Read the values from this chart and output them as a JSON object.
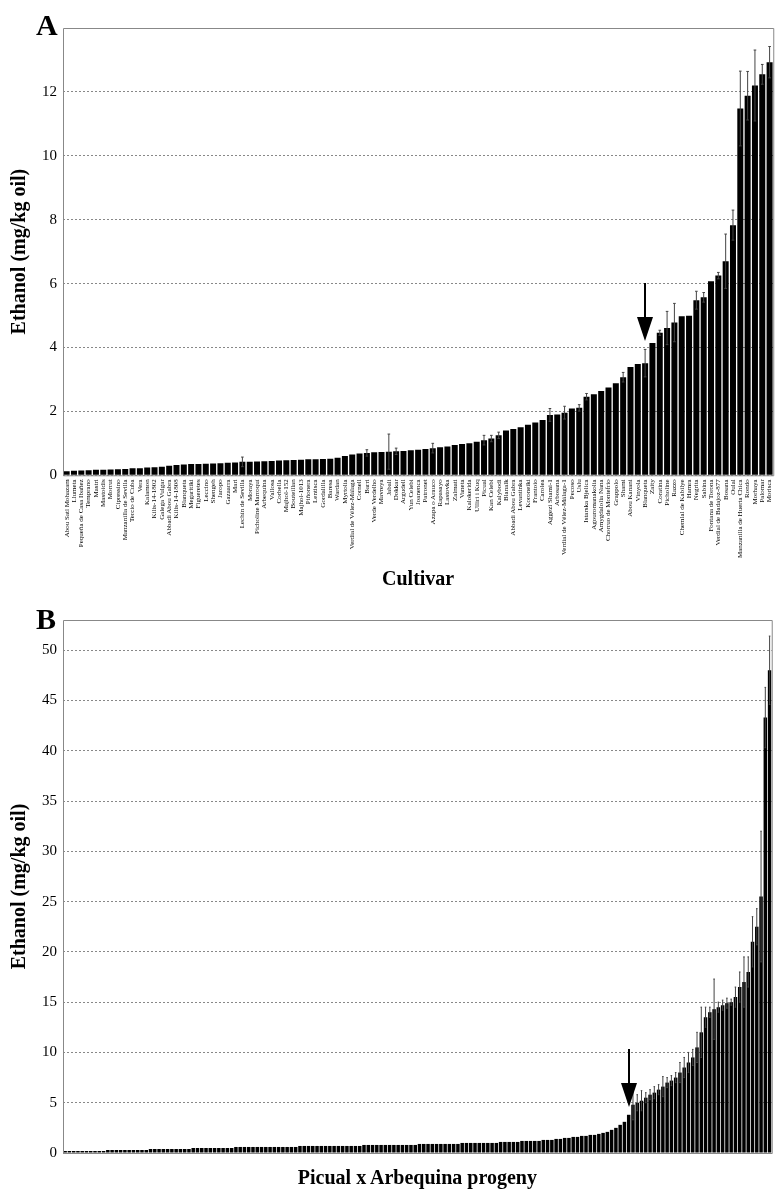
{
  "chart_data": [
    {
      "type": "bar",
      "title": "A",
      "xlabel": "Cultivar",
      "ylabel": "Ethanol (mg/kg oil)",
      "color": "#000000",
      "grid": "y",
      "ylim": [
        0,
        14
      ],
      "yticks": [
        0,
        2,
        4,
        6,
        8,
        10,
        12
      ],
      "categories": [
        "Abou Satl Mohazam",
        "Llumeta",
        "Pequeña de Casa Ibañez",
        "Temprano",
        "Mastri",
        "Mastoidis",
        "Morrut",
        "Cipressino",
        "Manzanilla de Sevilla",
        "Tercio de Cuba",
        "Vera",
        "Kalamon",
        "Kilis-14-1802",
        "Galega Vulgar",
        "Abbadi Abou Gabra",
        "Kilis-14-1808",
        "Blanqueta",
        "Megaritiki",
        "Figueretes",
        "Leccino",
        "Shengeh",
        "Jaropo",
        "Gazaarra",
        "Mari",
        "Lechín de Sevilla",
        "Moraya",
        "Picholine Marroquí",
        "Arbequina",
        "Vallosa",
        "Corbella",
        "Majhol-152",
        "Bouteillan",
        "Majhol-1013",
        "Piñonera",
        "Lentisca",
        "Gordalilla",
        "Baresa",
        "Wardan",
        "Myrtolia",
        "Verdial de Vélez-Málaga",
        "Cornell",
        "Barri",
        "Verde Verdelho",
        "Mavreya",
        "Jabali",
        "Dokkar",
        "Argudell",
        "Yun Celebi",
        "Joanenca",
        "Patronet",
        "Azapa o Arauco",
        "Rapasayo",
        "Lastovka",
        "Zalmati",
        "Vaneta",
        "Kalokerida",
        "Ulliri i Kuq",
        "Picual",
        "Kan Celebi",
        "Kalybodi",
        "Blanalk",
        "Abbadi Abou Gabra",
        "Levantinka",
        "Koroneiki",
        "Frantoio",
        "Carolea",
        "Aggezi Shami-1",
        "Arbosana",
        "Verdial de Vélez-Málaga-1",
        "Pecoso",
        "Uslu",
        "Istarska Bjelica",
        "Agouromanakolia",
        "Amygdalolia Nana",
        "Chorruo de Montefrío",
        "Grappolo",
        "Shami",
        "Abou Kanani",
        "Vinyola",
        "Blanqueta",
        "Zaity",
        "Coratina",
        "Picholine",
        "Razzo",
        "Chemlal de Kabilye",
        "Hamra",
        "Negrita",
        "Sabina",
        "Fontana de Torona",
        "Verdial de Badajoz-877",
        "Bosana",
        "Oulal",
        "Manzanilla de Huerta Chica",
        "Rondo",
        "Morhaya",
        "Palomar",
        "Morisca"
      ],
      "values": [
        0.13,
        0.14,
        0.15,
        0.16,
        0.17,
        0.17,
        0.18,
        0.19,
        0.2,
        0.22,
        0.22,
        0.24,
        0.25,
        0.27,
        0.3,
        0.32,
        0.34,
        0.35,
        0.35,
        0.36,
        0.37,
        0.38,
        0.39,
        0.4,
        0.42,
        0.42,
        0.43,
        0.44,
        0.45,
        0.46,
        0.47,
        0.48,
        0.49,
        0.5,
        0.5,
        0.51,
        0.52,
        0.55,
        0.6,
        0.65,
        0.68,
        0.7,
        0.72,
        0.73,
        0.74,
        0.75,
        0.76,
        0.78,
        0.8,
        0.82,
        0.85,
        0.88,
        0.9,
        0.95,
        0.98,
        1.0,
        1.05,
        1.1,
        1.15,
        1.25,
        1.4,
        1.45,
        1.5,
        1.58,
        1.65,
        1.73,
        1.89,
        1.9,
        1.96,
        2.09,
        2.11,
        2.46,
        2.54,
        2.64,
        2.75,
        2.88,
        3.07,
        3.39,
        3.48,
        3.51,
        4.14,
        4.46,
        4.61,
        4.78,
        4.98,
        4.99,
        5.48,
        5.57,
        6.07,
        6.25,
        6.7,
        7.83,
        11.48,
        11.88,
        12.2,
        12.55,
        12.93
      ],
      "errors": [
        null,
        null,
        null,
        null,
        null,
        null,
        null,
        null,
        null,
        null,
        null,
        null,
        null,
        null,
        null,
        null,
        null,
        null,
        null,
        null,
        null,
        null,
        null,
        null,
        0.15,
        null,
        null,
        null,
        null,
        null,
        null,
        null,
        null,
        null,
        null,
        null,
        null,
        null,
        null,
        null,
        null,
        0.1,
        null,
        null,
        0.55,
        0.1,
        null,
        null,
        null,
        null,
        0.15,
        null,
        null,
        null,
        null,
        null,
        null,
        0.15,
        0.1,
        0.1,
        null,
        null,
        null,
        null,
        null,
        null,
        0.2,
        null,
        0.2,
        null,
        0.1,
        0.1,
        null,
        null,
        null,
        null,
        0.15,
        null,
        null,
        0.43,
        null,
        0.08,
        0.52,
        0.6,
        null,
        null,
        0.28,
        0.15,
        null,
        0.1,
        0.85,
        0.47,
        1.17,
        0.76,
        1.11,
        0.31,
        0.49
      ]
    },
    {
      "type": "bar",
      "title": "B",
      "xlabel": "Picual x Arbequina progeny",
      "ylabel": "Ethanol (mg/kg oil)",
      "color": "#000000",
      "grid": "y",
      "ylim": [
        0,
        53
      ],
      "yticks": [
        0,
        5,
        10,
        15,
        20,
        25,
        30,
        35,
        40,
        45,
        50
      ],
      "categories": [
        null,
        null,
        null,
        null,
        null,
        null,
        null,
        null,
        null,
        null,
        null,
        null,
        null,
        null,
        null,
        null,
        null,
        null,
        null,
        null,
        null,
        null,
        null,
        null,
        null,
        null,
        null,
        null,
        null,
        null,
        null,
        null,
        null,
        null,
        null,
        null,
        null,
        null,
        null,
        null,
        null,
        null,
        null,
        null,
        null,
        null,
        null,
        null,
        null,
        null,
        null,
        null,
        null,
        null,
        null,
        null,
        null,
        null,
        null,
        null,
        null,
        null,
        null,
        null,
        null,
        null,
        null,
        null,
        null,
        null,
        null,
        null,
        null,
        null,
        null,
        null,
        null,
        null,
        null,
        null,
        null,
        null,
        null,
        null,
        null,
        null,
        null,
        null,
        null,
        null,
        null,
        null,
        null,
        null,
        null,
        null,
        null,
        null,
        null,
        null,
        null,
        null,
        null,
        null,
        null,
        null,
        null,
        null,
        null,
        null,
        null,
        null,
        null,
        null,
        null,
        null,
        null,
        null,
        null,
        null,
        null,
        null,
        null,
        null,
        null,
        null,
        null,
        null,
        null,
        null,
        null,
        null,
        null,
        null,
        null,
        null,
        null,
        null,
        null,
        null,
        null,
        null,
        null,
        null,
        null,
        null,
        null,
        null,
        null,
        null,
        null,
        null,
        null,
        null,
        null,
        null,
        null,
        null,
        null,
        null,
        null,
        null,
        null,
        null,
        null,
        null
      ],
      "values": [
        0.2,
        0.2,
        0.2,
        0.2,
        0.2,
        0.2,
        0.2,
        0.2,
        0.2,
        0.2,
        0.3,
        0.3,
        0.3,
        0.3,
        0.3,
        0.3,
        0.3,
        0.3,
        0.3,
        0.3,
        0.4,
        0.4,
        0.4,
        0.4,
        0.4,
        0.4,
        0.4,
        0.4,
        0.4,
        0.4,
        0.5,
        0.5,
        0.5,
        0.5,
        0.5,
        0.5,
        0.5,
        0.5,
        0.5,
        0.5,
        0.6,
        0.6,
        0.6,
        0.6,
        0.6,
        0.6,
        0.6,
        0.6,
        0.6,
        0.6,
        0.6,
        0.6,
        0.6,
        0.6,
        0.6,
        0.7,
        0.7,
        0.7,
        0.7,
        0.7,
        0.7,
        0.7,
        0.7,
        0.7,
        0.7,
        0.7,
        0.7,
        0.7,
        0.7,
        0.7,
        0.8,
        0.8,
        0.8,
        0.8,
        0.8,
        0.8,
        0.8,
        0.8,
        0.8,
        0.8,
        0.8,
        0.8,
        0.8,
        0.9,
        0.9,
        0.9,
        0.9,
        0.9,
        0.9,
        0.9,
        0.9,
        0.9,
        0.9,
        1.0,
        1.0,
        1.0,
        1.0,
        1.0,
        1.0,
        1.0,
        1.0,
        1.0,
        1.1,
        1.1,
        1.1,
        1.1,
        1.1,
        1.2,
        1.2,
        1.2,
        1.2,
        1.2,
        1.3,
        1.3,
        1.3,
        1.4,
        1.4,
        1.5,
        1.5,
        1.6,
        1.6,
        1.7,
        1.7,
        1.8,
        1.8,
        1.9,
        2.0,
        2.1,
        2.3,
        2.5,
        2.8,
        3.1,
        3.8,
        4.8,
        5.0,
        5.2,
        5.5,
        5.8,
        6.0,
        6.3,
        6.6,
        7.0,
        7.2,
        7.5,
        8.0,
        8.5,
        9.0,
        9.5,
        10.5,
        12.0,
        13.5,
        14.0,
        14.3,
        14.5,
        14.7,
        14.9,
        15.0,
        15.5,
        16.5,
        17.0,
        18.0,
        21.0,
        22.5,
        25.5,
        43.3,
        48.0
      ],
      "errors": [
        null,
        null,
        null,
        null,
        null,
        null,
        null,
        null,
        null,
        null,
        null,
        null,
        null,
        null,
        null,
        null,
        null,
        null,
        null,
        null,
        null,
        null,
        null,
        null,
        null,
        null,
        null,
        null,
        null,
        null,
        null,
        null,
        null,
        null,
        null,
        null,
        null,
        null,
        null,
        null,
        null,
        null,
        null,
        null,
        null,
        null,
        null,
        null,
        null,
        null,
        null,
        null,
        null,
        null,
        null,
        null,
        null,
        null,
        null,
        null,
        null,
        null,
        null,
        null,
        null,
        null,
        null,
        null,
        null,
        null,
        null,
        null,
        null,
        null,
        null,
        null,
        null,
        null,
        null,
        null,
        null,
        null,
        null,
        null,
        null,
        null,
        null,
        null,
        null,
        null,
        null,
        null,
        null,
        null,
        null,
        null,
        null,
        null,
        null,
        null,
        null,
        null,
        null,
        null,
        null,
        null,
        null,
        null,
        null,
        null,
        null,
        null,
        null,
        null,
        null,
        null,
        null,
        null,
        null,
        null,
        null,
        null,
        null,
        null,
        null,
        null,
        null,
        null,
        null,
        null,
        null,
        null,
        null,
        1.5,
        0.8,
        1.0,
        0.5,
        0.5,
        0.6,
        0.5,
        1.0,
        0.5,
        0.5,
        0.5,
        1.0,
        1.0,
        1.0,
        0.8,
        1.5,
        2.5,
        1.0,
        0.5,
        3.0,
        0.5,
        0.5,
        0.5,
        0.3,
        1.0,
        1.5,
        2.5,
        1.5,
        2.5,
        1.8,
        6.5,
        3.0,
        3.4
      ]
    }
  ]
}
